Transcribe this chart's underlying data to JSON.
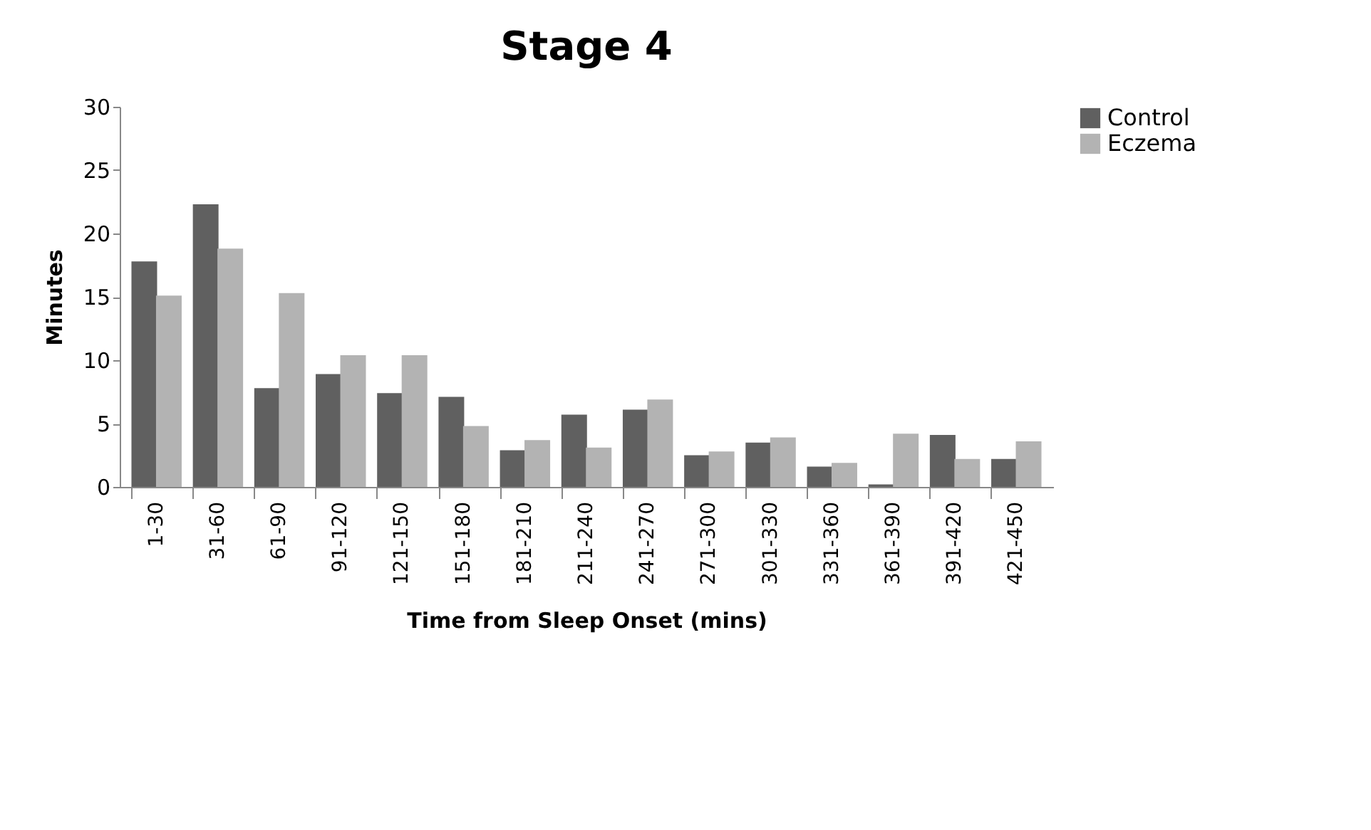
{
  "chart_data": {
    "type": "bar",
    "title": "Stage 4",
    "xlabel": "Time from Sleep Onset (mins)",
    "ylabel": "Minutes",
    "categories": [
      "1-30",
      "31-60",
      "61-90",
      "91-120",
      "121-150",
      "151-180",
      "181-210",
      "211-240",
      "241-270",
      "271-300",
      "301-330",
      "331-360",
      "361-390",
      "391-420",
      "421-450"
    ],
    "series": [
      {
        "name": "Control",
        "color": "#606060",
        "values": [
          17.8,
          22.3,
          7.8,
          8.9,
          7.4,
          7.1,
          2.9,
          5.7,
          6.1,
          2.5,
          3.5,
          1.6,
          0.2,
          4.1,
          2.2
        ]
      },
      {
        "name": "Eczema",
        "color": "#b3b3b3",
        "values": [
          15.1,
          18.8,
          15.3,
          10.4,
          10.4,
          4.8,
          3.7,
          3.1,
          6.9,
          2.8,
          3.9,
          1.9,
          4.2,
          2.2,
          3.6
        ]
      }
    ],
    "ylim": [
      0,
      30
    ],
    "yticks": [
      0,
      5,
      10,
      15,
      20,
      25,
      30
    ],
    "grid": false,
    "legend": "right"
  }
}
